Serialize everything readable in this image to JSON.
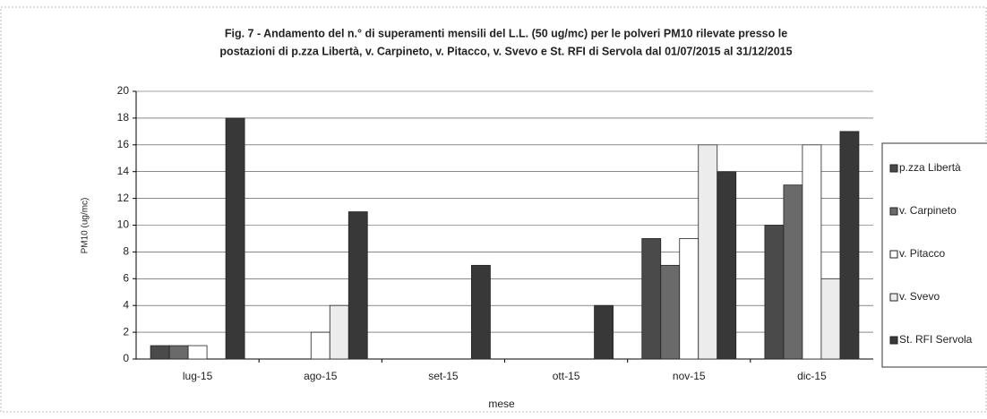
{
  "chart_data": {
    "type": "bar",
    "title": [
      "Fig. 7 - Andamento del n.° di superamenti  mensili del L.L. (50 ug/mc) per le polveri  PM10 rilevate presso le",
      "postazioni di p.zza Libertà, v. Carpineto, v. Pitacco, v. Svevo e St. RFI di Servola dal 01/07/2015 al 31/12/2015"
    ],
    "x_label": "mese",
    "y_label": "PM10 (ug/mc)",
    "categories": [
      "lug-15",
      "ago-15",
      "set-15",
      "ott-15",
      "nov-15",
      "dic-15"
    ],
    "series": [
      {
        "name": "p.zza Libertà",
        "color": "#4a4a4a",
        "values": [
          1,
          0,
          0,
          0,
          9,
          10
        ]
      },
      {
        "name": "v. Carpineto",
        "color": "#6a6a6a",
        "values": [
          1,
          0,
          0,
          0,
          7,
          13
        ]
      },
      {
        "name": "v. Pitacco",
        "color": "#ffffff",
        "values": [
          1,
          2,
          0,
          0,
          9,
          16
        ]
      },
      {
        "name": "v. Svevo",
        "color": "#ececec",
        "values": [
          0,
          4,
          0,
          0,
          16,
          6
        ]
      },
      {
        "name": "St. RFI Servola",
        "color": "#383838",
        "values": [
          18,
          11,
          7,
          4,
          14,
          17
        ]
      }
    ],
    "ylim": [
      0,
      20
    ],
    "yticks": [
      0,
      2,
      4,
      6,
      8,
      10,
      12,
      14,
      16,
      18,
      20
    ],
    "grid": true,
    "legend": "right"
  }
}
